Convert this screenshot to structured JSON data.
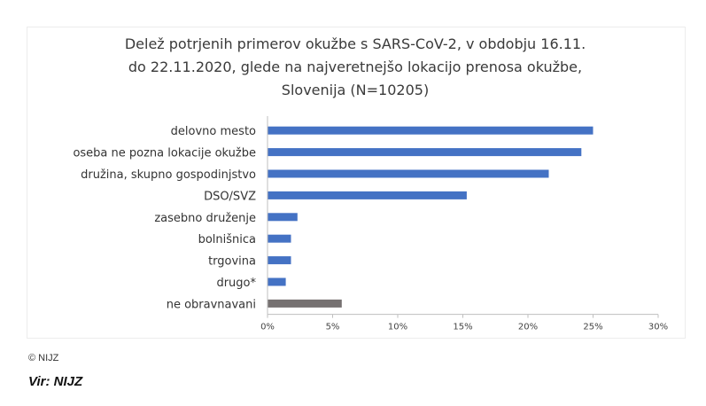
{
  "chart_data": {
    "type": "bar",
    "orientation": "horizontal",
    "title_lines": [
      "Delež potrjenih primerov okužbe s SARS-CoV-2, v obdobju 16.11.",
      "do 22.11.2020, glede na najveretnejšo lokacijo prenosa okužbe,",
      "Slovenija (N=10205)"
    ],
    "categories": [
      "delovno mesto",
      "oseba ne pozna lokacije okužbe",
      "družina, skupno gospodinjstvo",
      "DSO/SVZ",
      "zasebno druženje",
      "bolnišnica",
      "trgovina",
      "drugo*",
      "ne obravnavani"
    ],
    "values": [
      25.0,
      24.1,
      21.6,
      15.3,
      2.3,
      1.8,
      1.8,
      1.4,
      5.7
    ],
    "value_unit": "%",
    "bar_colors": [
      "#4472c4",
      "#4472c4",
      "#4472c4",
      "#4472c4",
      "#4472c4",
      "#4472c4",
      "#4472c4",
      "#4472c4",
      "#767171"
    ],
    "xlim": [
      0,
      30
    ],
    "x_ticks": [
      0,
      5,
      10,
      15,
      20,
      25,
      30
    ],
    "x_tick_labels": [
      "0%",
      "5%",
      "10%",
      "15%",
      "20%",
      "25%",
      "30%"
    ],
    "grid": false,
    "legend": "none"
  },
  "footer": {
    "copyright": "© NIJZ",
    "source": "Vir: NIJZ"
  }
}
